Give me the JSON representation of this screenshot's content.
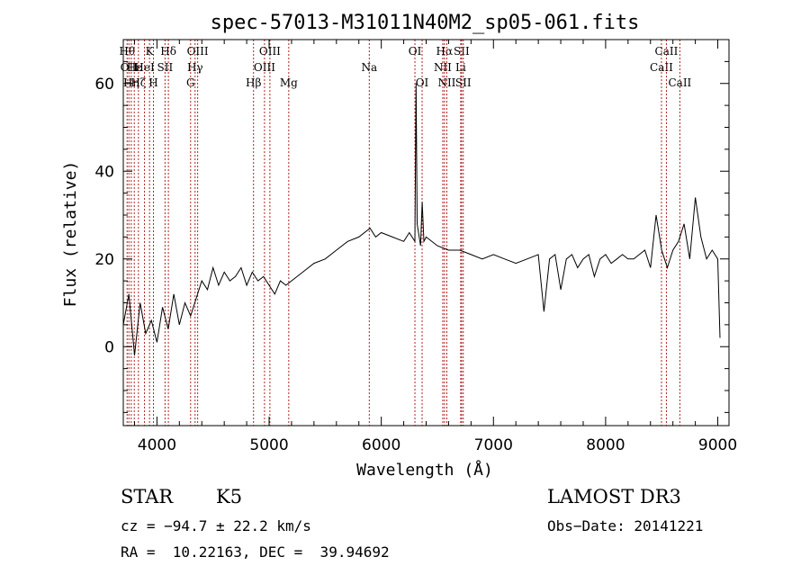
{
  "chart_data": {
    "type": "line",
    "title": "spec-57013-M31011N40M2_sp05-061.fits",
    "xlabel": "Wavelength (Å)",
    "ylabel": "Flux (relative)",
    "xlim": [
      3700,
      9100
    ],
    "ylim": [
      -18,
      70
    ],
    "x_ticks": [
      4000,
      5000,
      6000,
      7000,
      8000,
      9000
    ],
    "x_tick_labels": [
      "4000",
      "5000",
      "6000",
      "7000",
      "8000",
      "9000"
    ],
    "y_ticks": [
      0,
      20,
      40,
      60
    ],
    "y_tick_labels": [
      "0",
      "20",
      "40",
      "60"
    ],
    "grid": false,
    "series": [
      {
        "name": "spectrum",
        "x": [
          3700,
          3750,
          3800,
          3850,
          3900,
          3950,
          4000,
          4050,
          4100,
          4150,
          4200,
          4250,
          4300,
          4350,
          4400,
          4450,
          4500,
          4550,
          4600,
          4650,
          4700,
          4750,
          4800,
          4850,
          4900,
          4950,
          5000,
          5050,
          5100,
          5150,
          5200,
          5300,
          5400,
          5500,
          5600,
          5700,
          5800,
          5900,
          5950,
          6000,
          6100,
          6200,
          6250,
          6300,
          6310,
          6320,
          6350,
          6365,
          6380,
          6400,
          6500,
          6600,
          6700,
          6800,
          6900,
          7000,
          7100,
          7200,
          7300,
          7400,
          7450,
          7500,
          7550,
          7600,
          7650,
          7700,
          7750,
          7800,
          7850,
          7900,
          7950,
          8000,
          8050,
          8100,
          8150,
          8200,
          8250,
          8300,
          8350,
          8400,
          8450,
          8500,
          8550,
          8600,
          8650,
          8700,
          8750,
          8800,
          8850,
          8900,
          8950,
          9000,
          9020
        ],
        "y": [
          5,
          12,
          -2,
          10,
          3,
          6,
          1,
          9,
          4,
          12,
          5,
          10,
          7,
          11,
          15,
          13,
          18,
          14,
          17,
          15,
          16,
          18,
          14,
          17,
          15,
          16,
          14,
          12,
          15,
          14,
          15,
          17,
          19,
          20,
          22,
          24,
          25,
          27,
          25,
          26,
          25,
          24,
          26,
          24,
          60,
          28,
          23,
          33,
          24,
          25,
          23,
          22,
          22,
          21,
          20,
          21,
          20,
          19,
          20,
          21,
          8,
          20,
          21,
          13,
          20,
          21,
          18,
          20,
          21,
          16,
          20,
          21,
          19,
          20,
          21,
          20,
          20,
          21,
          22,
          18,
          30,
          22,
          18,
          22,
          24,
          28,
          20,
          34,
          25,
          20,
          22,
          20,
          2
        ],
        "color": "#000000"
      }
    ],
    "line_markers": [
      {
        "wavelength": 3734,
        "label": "Hθ",
        "row": 0
      },
      {
        "wavelength": 3750,
        "label": "OII",
        "row": 1
      },
      {
        "wavelength": 3771,
        "label": "Hη",
        "row": 2
      },
      {
        "wavelength": 3798,
        "label": "Hε",
        "row": 1
      },
      {
        "wavelength": 3835,
        "label": "Hζ",
        "row": 2
      },
      {
        "wavelength": 3889,
        "label": "HeI",
        "row": 1
      },
      {
        "wavelength": 3934,
        "label": "K",
        "row": 0
      },
      {
        "wavelength": 3969,
        "label": "H",
        "row": 2
      },
      {
        "wavelength": 4072,
        "label": "SII",
        "row": 1
      },
      {
        "wavelength": 4102,
        "label": "Hδ",
        "row": 0
      },
      {
        "wavelength": 4300,
        "label": "G",
        "row": 2
      },
      {
        "wavelength": 4340,
        "label": "Hγ",
        "row": 1
      },
      {
        "wavelength": 4363,
        "label": "OIII",
        "row": 0
      },
      {
        "wavelength": 4861,
        "label": "Hβ",
        "row": 2
      },
      {
        "wavelength": 4959,
        "label": "OIII",
        "row": 1
      },
      {
        "wavelength": 5007,
        "label": "OIII",
        "row": 0
      },
      {
        "wavelength": 5175,
        "label": "Mg",
        "row": 2
      },
      {
        "wavelength": 5893,
        "label": "Na",
        "row": 1
      },
      {
        "wavelength": 6300,
        "label": "OI",
        "row": 0
      },
      {
        "wavelength": 6364,
        "label": "OI",
        "row": 2
      },
      {
        "wavelength": 6548,
        "label": "NII",
        "row": 1
      },
      {
        "wavelength": 6563,
        "label": "Hα",
        "row": 0
      },
      {
        "wavelength": 6584,
        "label": "NII",
        "row": 2
      },
      {
        "wavelength": 6708,
        "label": "Li",
        "row": 1
      },
      {
        "wavelength": 6716,
        "label": "SII",
        "row": 0
      },
      {
        "wavelength": 6731,
        "label": "SII",
        "row": 2
      },
      {
        "wavelength": 8498,
        "label": "CaII",
        "row": 1
      },
      {
        "wavelength": 8542,
        "label": "CaII",
        "row": 0
      },
      {
        "wavelength": 8662,
        "label": "CaII",
        "row": 2
      }
    ]
  },
  "info": {
    "object_class": "STAR",
    "subclass": "K5",
    "survey": "LAMOST DR3",
    "redshift_line": "cz = −94.7 ± 22.2 km/s",
    "obs_date_line": "Obs−Date: 20141221",
    "coords_line": "RA =  10.22163, DEC =  39.94692"
  }
}
